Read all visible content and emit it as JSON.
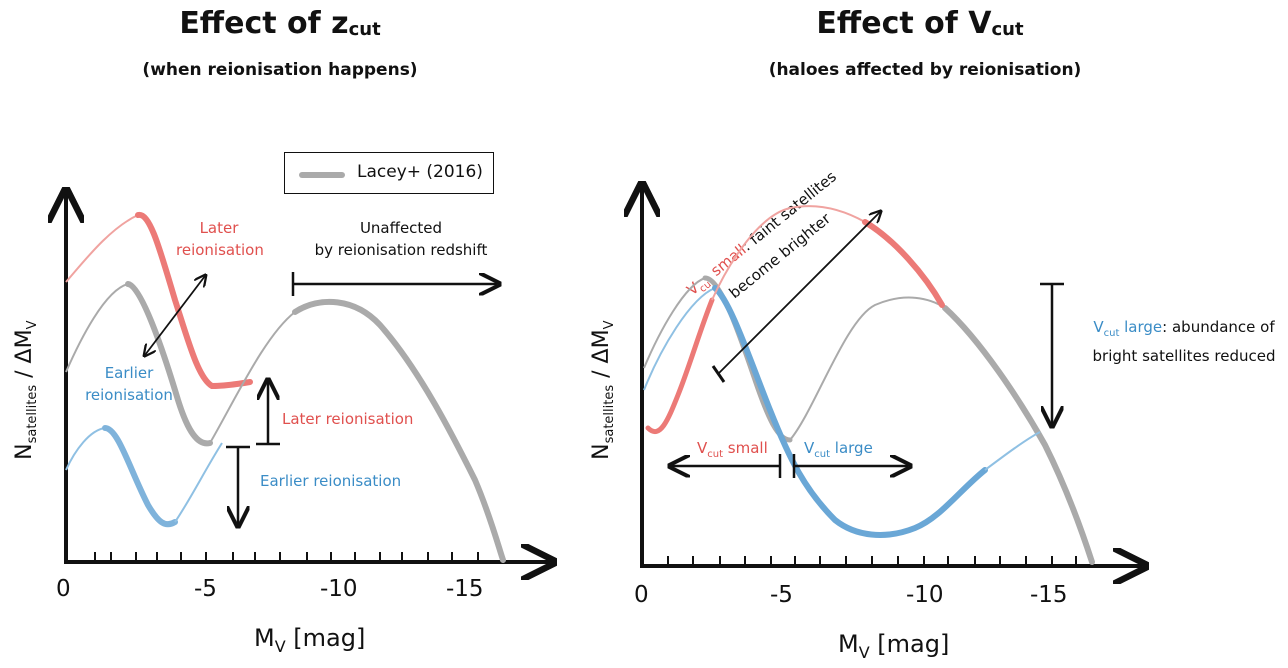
{
  "left_panel": {
    "title_main": "Effect of z",
    "title_sub": "cut",
    "subtitle": "(when reionisation happens)",
    "legend": "Lacey+ (2016)",
    "label_later_1": "Later",
    "label_later_2": "reionisation",
    "label_unaffected_1": "Unaffected",
    "label_unaffected_2": "by reionisation redshift",
    "label_earlier_1": "Earlier",
    "label_earlier_2": "reionisation",
    "label_later_reion": "Later reionisation",
    "label_earlier_reion": "Earlier reionisation",
    "xlabel_main": "M",
    "xlabel_sub": "V",
    "xlabel_unit": " [mag]",
    "ylabel_main": "N",
    "ylabel_sub": "satellites",
    "ylabel_rest": " / ΔM",
    "ylabel_sub2": "V",
    "ticks": [
      "0",
      "-5",
      "-10",
      "-15"
    ]
  },
  "right_panel": {
    "title_main": "Effect of V",
    "title_sub": "cut",
    "subtitle": "(haloes affected by reionisation)",
    "vcut_large_sym": "V",
    "vcut_large_sub": "cut",
    "vcut_large_word": " large",
    "vcut_large_desc_1": ": abundance of",
    "vcut_large_desc_2": "bright satellites reduced",
    "vcut_small_sym": "V",
    "vcut_small_sub": "cut",
    "vcut_small_word": " small",
    "vcut_small_desc_1": ": faint satellites",
    "vcut_small_desc_2": "become brighter",
    "xlabel_main": "M",
    "xlabel_sub": "V",
    "xlabel_unit": " [mag]",
    "ylabel_main": "N",
    "ylabel_sub": "satellites",
    "ylabel_rest": " / ΔM",
    "ylabel_sub2": "V",
    "ticks": [
      "0",
      "-5",
      "-10",
      "-15"
    ]
  },
  "colors": {
    "grey": "#aaaaaa",
    "red": "#e0504e",
    "blue": "#3a8cc6",
    "red_thin": "#f0a3a0",
    "blue_thin": "#8fc0e3"
  }
}
